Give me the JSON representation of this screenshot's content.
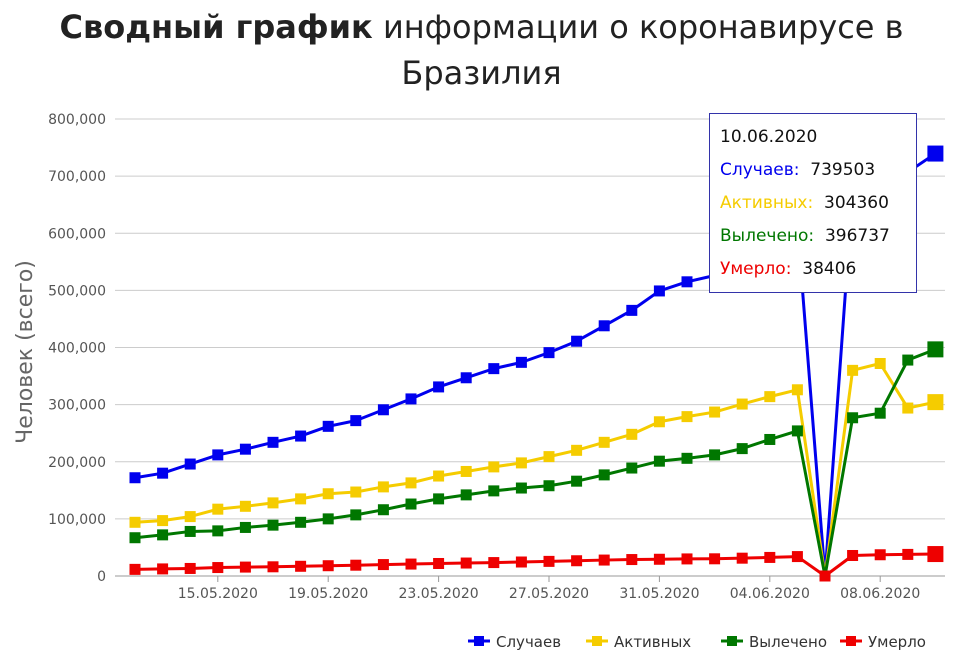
{
  "title": {
    "bold": "Сводный график",
    "rest": "информации о коронавирусе в Бразилия"
  },
  "chart_data": {
    "type": "line",
    "ylabel": "Человек (всего)",
    "ylim": [
      0,
      800000
    ],
    "yticks": [
      "0",
      "100,000",
      "200,000",
      "300,000",
      "400,000",
      "500,000",
      "600,000",
      "700,000",
      "800,000"
    ],
    "x": [
      "12.05.2020",
      "13.05.2020",
      "14.05.2020",
      "15.05.2020",
      "16.05.2020",
      "17.05.2020",
      "18.05.2020",
      "19.05.2020",
      "20.05.2020",
      "21.05.2020",
      "22.05.2020",
      "23.05.2020",
      "24.05.2020",
      "25.05.2020",
      "26.05.2020",
      "27.05.2020",
      "28.05.2020",
      "29.05.2020",
      "30.05.2020",
      "31.05.2020",
      "01.06.2020",
      "02.06.2020",
      "03.06.2020",
      "04.06.2020",
      "05.06.2020",
      "06.06.2020",
      "07.06.2020",
      "08.06.2020",
      "09.06.2020",
      "10.06.2020"
    ],
    "xtick_labels": [
      "15.05.2020",
      "19.05.2020",
      "23.05.2020",
      "27.05.2020",
      "31.05.2020",
      "04.06.2020",
      "08.06.2020"
    ],
    "series": [
      {
        "name": "Случаев",
        "color": "#0000ee",
        "values": [
          172000,
          180000,
          196000,
          212000,
          222000,
          234000,
          245000,
          262000,
          272000,
          291000,
          310000,
          331000,
          347000,
          363000,
          374000,
          391000,
          411000,
          438000,
          465000,
          499000,
          515000,
          526000,
          555000,
          584000,
          614000,
          0,
          672000,
          691000,
          707000,
          739503
        ]
      },
      {
        "name": "Активных",
        "color": "#f5cc00",
        "values": [
          94000,
          97000,
          104000,
          117000,
          122000,
          128000,
          135000,
          144000,
          147000,
          156000,
          163000,
          175000,
          183000,
          191000,
          198000,
          209000,
          220000,
          234000,
          248000,
          270000,
          279000,
          287000,
          301000,
          314000,
          326000,
          0,
          360000,
          372000,
          294000,
          304360
        ]
      },
      {
        "name": "Вылечено",
        "color": "#007700",
        "values": [
          67000,
          72000,
          78000,
          79000,
          85000,
          89000,
          94000,
          100000,
          107000,
          116000,
          126000,
          135000,
          142000,
          149000,
          154000,
          158000,
          166000,
          177000,
          189000,
          201000,
          206000,
          212000,
          223000,
          239000,
          254000,
          0,
          277000,
          285000,
          378000,
          396737
        ]
      },
      {
        "name": "Умерло",
        "color": "#ee0000",
        "values": [
          11600,
          12400,
          13200,
          14800,
          15600,
          16100,
          17000,
          18000,
          18900,
          20000,
          20900,
          21900,
          22700,
          23500,
          24500,
          25600,
          26700,
          27900,
          28800,
          29300,
          29900,
          30100,
          31200,
          32500,
          34000,
          0,
          35900,
          37200,
          37800,
          38406
        ]
      }
    ],
    "legend": "bottom-right",
    "grid": true
  },
  "tooltip": {
    "date": "10.06.2020",
    "rows": [
      {
        "label": "Случаев:",
        "value": "739503",
        "color": "#0000ee"
      },
      {
        "label": "Активных:",
        "value": "304360",
        "color": "#f5cc00"
      },
      {
        "label": "Вылечено:",
        "value": "396737",
        "color": "#007700"
      },
      {
        "label": "Умерло:",
        "value": "38406",
        "color": "#ee0000"
      }
    ]
  }
}
